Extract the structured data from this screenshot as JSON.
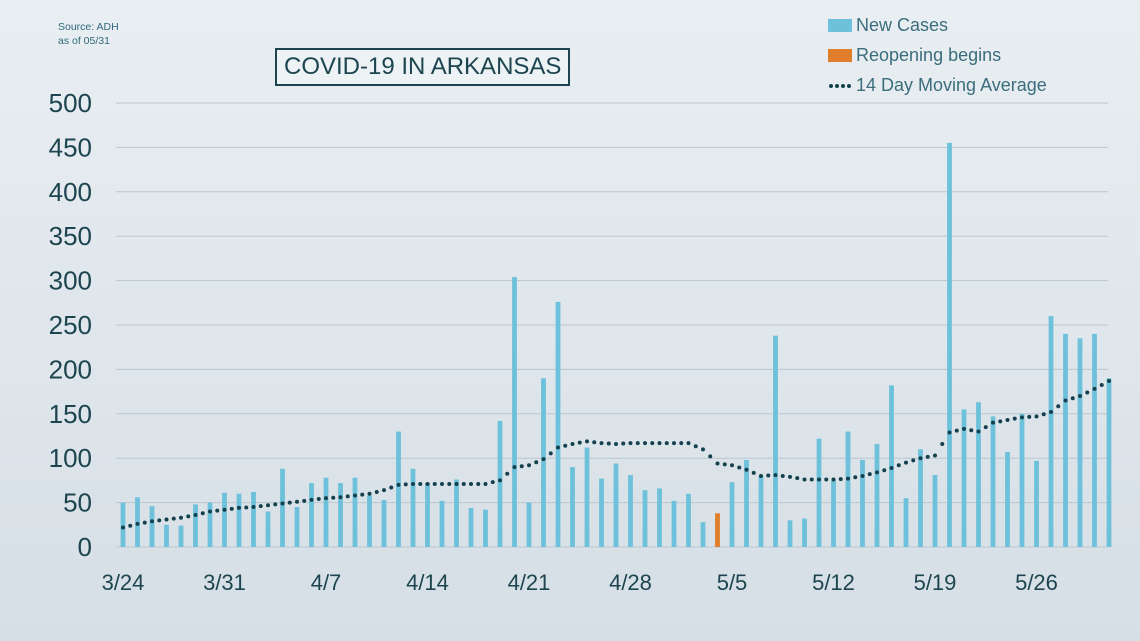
{
  "source": {
    "line1": "Source: ADH",
    "line2": "as of 05/31"
  },
  "colors": {
    "bar": "#6ec1da",
    "reopening": "#e07e2c",
    "average": "#15414e",
    "grid": "#b9c7cf",
    "text": "#1d4550"
  },
  "chart_data": {
    "type": "bar",
    "title": "COVID-19 IN ARKANSAS",
    "xlabel": "",
    "ylabel": "",
    "ylim": [
      0,
      500
    ],
    "yticks": [
      0,
      50,
      100,
      150,
      200,
      250,
      300,
      350,
      400,
      450,
      500
    ],
    "grid": true,
    "legend_position": "top-right",
    "x_tick_labels": [
      {
        "date": "3/24",
        "label": "3/24"
      },
      {
        "date": "3/31",
        "label": "3/31"
      },
      {
        "date": "4/7",
        "label": "4/7"
      },
      {
        "date": "4/14",
        "label": "4/14"
      },
      {
        "date": "4/21",
        "label": "4/21"
      },
      {
        "date": "4/28",
        "label": "4/28"
      },
      {
        "date": "5/5",
        "label": "5/5"
      },
      {
        "date": "5/12",
        "label": "5/12"
      },
      {
        "date": "5/19",
        "label": "5/19"
      },
      {
        "date": "5/26",
        "label": "5/26"
      }
    ],
    "categories": [
      "3/24",
      "3/25",
      "3/26",
      "3/27",
      "3/28",
      "3/29",
      "3/30",
      "3/31",
      "4/1",
      "4/2",
      "4/3",
      "4/4",
      "4/5",
      "4/6",
      "4/7",
      "4/8",
      "4/9",
      "4/10",
      "4/11",
      "4/12",
      "4/13",
      "4/14",
      "4/15",
      "4/16",
      "4/17",
      "4/18",
      "4/19",
      "4/20",
      "4/21",
      "4/22",
      "4/23",
      "4/24",
      "4/25",
      "4/26",
      "4/27",
      "4/28",
      "4/29",
      "4/30",
      "5/1",
      "5/2",
      "5/3",
      "5/4",
      "5/5",
      "5/6",
      "5/7",
      "5/8",
      "5/9",
      "5/10",
      "5/11",
      "5/12",
      "5/13",
      "5/14",
      "5/15",
      "5/16",
      "5/17",
      "5/18",
      "5/19",
      "5/20",
      "5/21",
      "5/22",
      "5/23",
      "5/24",
      "5/25",
      "5/26",
      "5/27",
      "5/28",
      "5/29",
      "5/30",
      "5/31"
    ],
    "series": [
      {
        "name": "New Cases",
        "kind": "bar",
        "values": [
          50,
          56,
          46,
          25,
          24,
          48,
          50,
          61,
          60,
          62,
          40,
          88,
          45,
          72,
          78,
          72,
          78,
          58,
          53,
          130,
          88,
          72,
          52,
          76,
          44,
          42,
          142,
          304,
          50,
          190,
          276,
          90,
          112,
          77,
          94,
          81,
          64,
          66,
          52,
          60,
          28,
          38,
          73,
          98,
          80,
          238,
          30,
          32,
          122,
          75,
          130,
          98,
          116,
          182,
          55,
          110,
          81,
          455,
          155,
          163,
          147,
          107,
          150,
          97,
          260,
          240,
          235,
          240,
          190
        ]
      },
      {
        "name": "Reopening begins",
        "kind": "highlight",
        "category": "5/4",
        "value": 38
      },
      {
        "name": "14 Day Moving Average",
        "kind": "dotted-line",
        "values": [
          22,
          26,
          29,
          31,
          33,
          36,
          40,
          42,
          44,
          45,
          47,
          49,
          51,
          53,
          55,
          56,
          58,
          60,
          64,
          70,
          71,
          71,
          71,
          71,
          71,
          71,
          75,
          90,
          92,
          99,
          112,
          116,
          119,
          117,
          116,
          117,
          117,
          117,
          117,
          117,
          110,
          94,
          92,
          87,
          80,
          81,
          79,
          76,
          76,
          76,
          77,
          80,
          84,
          89,
          95,
          100,
          103,
          129,
          133,
          130,
          140,
          143,
          146,
          147,
          152,
          165,
          170,
          178,
          187
        ]
      }
    ]
  }
}
